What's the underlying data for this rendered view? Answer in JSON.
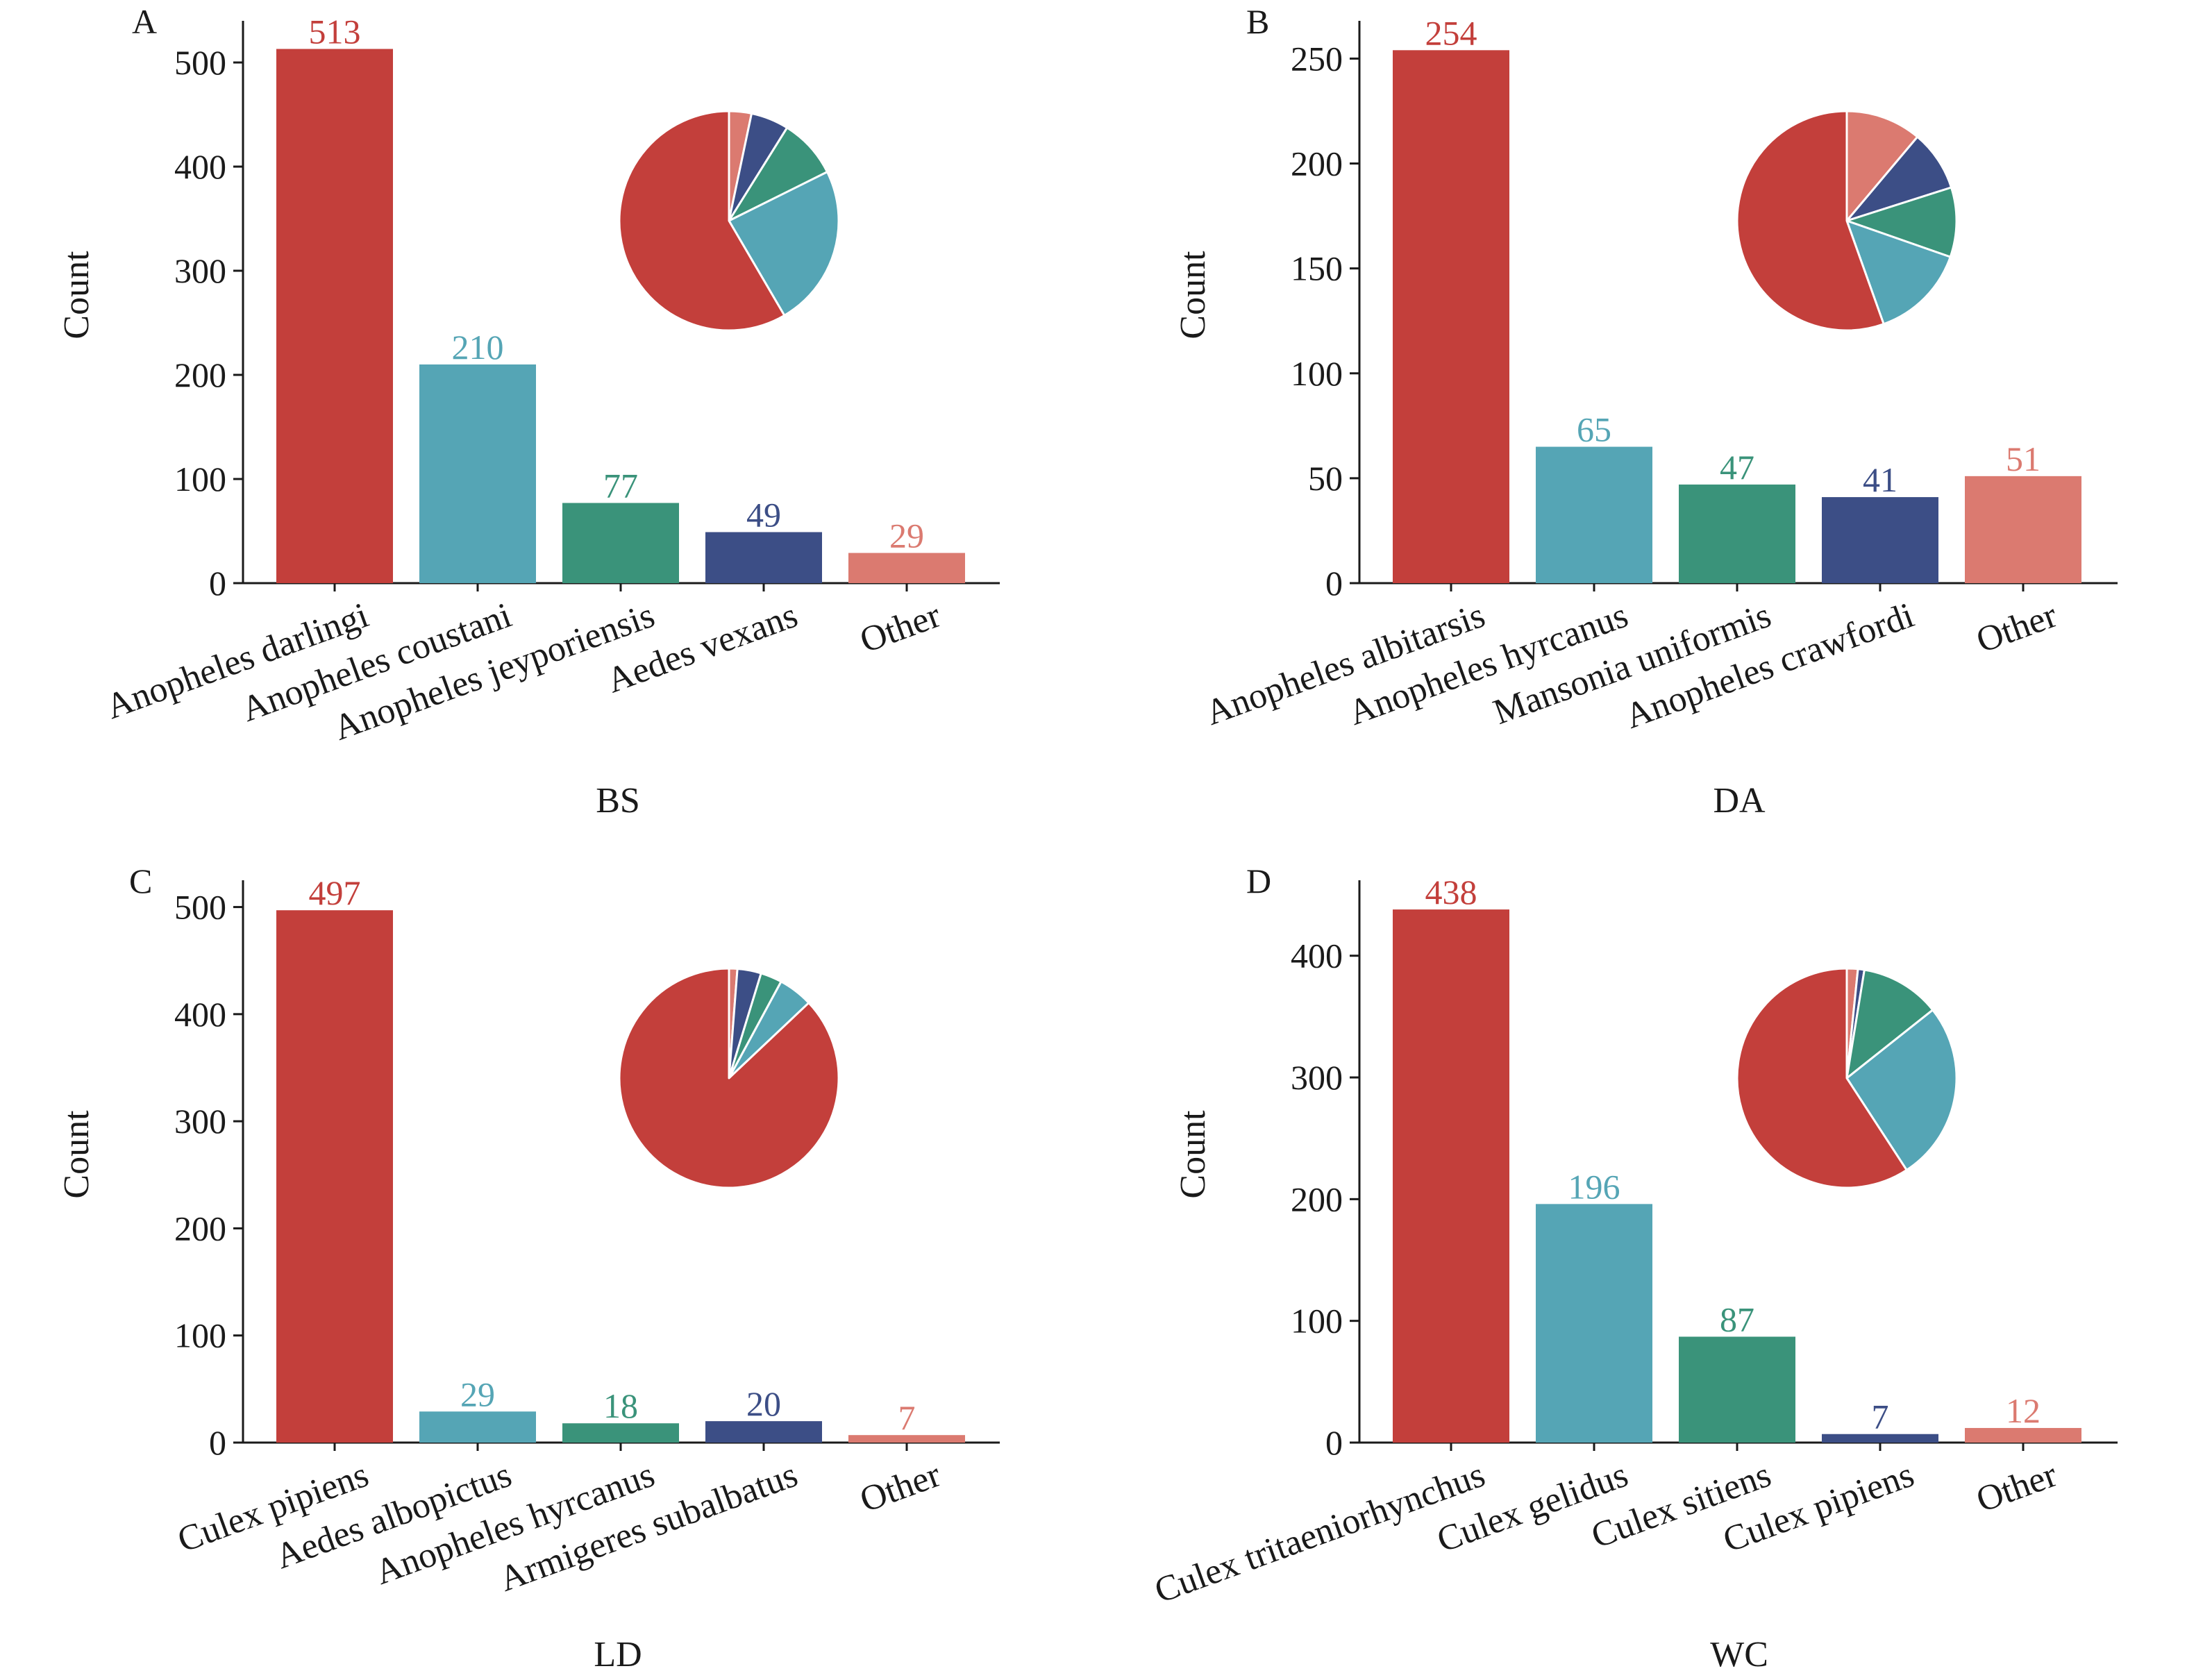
{
  "colors": {
    "red": "#C33F3B",
    "teal": "#55A5B5",
    "green": "#3A937A",
    "navy": "#3C4E86",
    "salmon": "#DB7A70",
    "axis": "#1a1a1a"
  },
  "chart_data": [
    {
      "type": "bar",
      "panel": "A",
      "site": "BS",
      "ylabel": "Count",
      "ylim": [
        0,
        540
      ],
      "yticks": [
        0,
        100,
        200,
        300,
        400,
        500
      ],
      "categories": [
        "Anopheles darlingi",
        "Anopheles coustani",
        "Anopheles jeyporiensis",
        "Aedes vexans",
        "Other"
      ],
      "values": [
        513,
        210,
        77,
        49,
        29
      ],
      "colors": [
        "#C33F3B",
        "#55A5B5",
        "#3A937A",
        "#3C4E86",
        "#DB7A70"
      ],
      "inset_pie": true,
      "grid": false
    },
    {
      "type": "bar",
      "panel": "B",
      "site": "DA",
      "ylabel": "Count",
      "ylim": [
        0,
        268
      ],
      "yticks": [
        0,
        50,
        100,
        150,
        200,
        250
      ],
      "categories": [
        "Anopheles albitarsis",
        "Anopheles hyrcanus",
        "Mansonia uniformis",
        "Anopheles crawfordi",
        "Other"
      ],
      "values": [
        254,
        65,
        47,
        41,
        51
      ],
      "colors": [
        "#C33F3B",
        "#55A5B5",
        "#3A937A",
        "#3C4E86",
        "#DB7A70"
      ],
      "inset_pie": true,
      "grid": false
    },
    {
      "type": "bar",
      "panel": "C",
      "site": "LD",
      "ylabel": "Count",
      "ylim": [
        0,
        525
      ],
      "yticks": [
        0,
        100,
        200,
        300,
        400,
        500
      ],
      "categories": [
        "Culex pipiens",
        "Aedes albopictus",
        "Anopheles hyrcanus",
        "Armigeres subalbatus",
        "Other"
      ],
      "values": [
        497,
        29,
        18,
        20,
        7
      ],
      "colors": [
        "#C33F3B",
        "#55A5B5",
        "#3A937A",
        "#3C4E86",
        "#DB7A70"
      ],
      "inset_pie": true,
      "grid": false
    },
    {
      "type": "bar",
      "panel": "D",
      "site": "WC",
      "ylabel": "Count",
      "ylim": [
        0,
        462
      ],
      "yticks": [
        0,
        100,
        200,
        300,
        400
      ],
      "categories": [
        "Culex tritaeniorhynchus",
        "Culex gelidus",
        "Culex sitiens",
        "Culex pipiens",
        "Other"
      ],
      "values": [
        438,
        196,
        87,
        7,
        12
      ],
      "colors": [
        "#C33F3B",
        "#55A5B5",
        "#3A937A",
        "#3C4E86",
        "#DB7A70"
      ],
      "inset_pie": true,
      "grid": false
    }
  ]
}
